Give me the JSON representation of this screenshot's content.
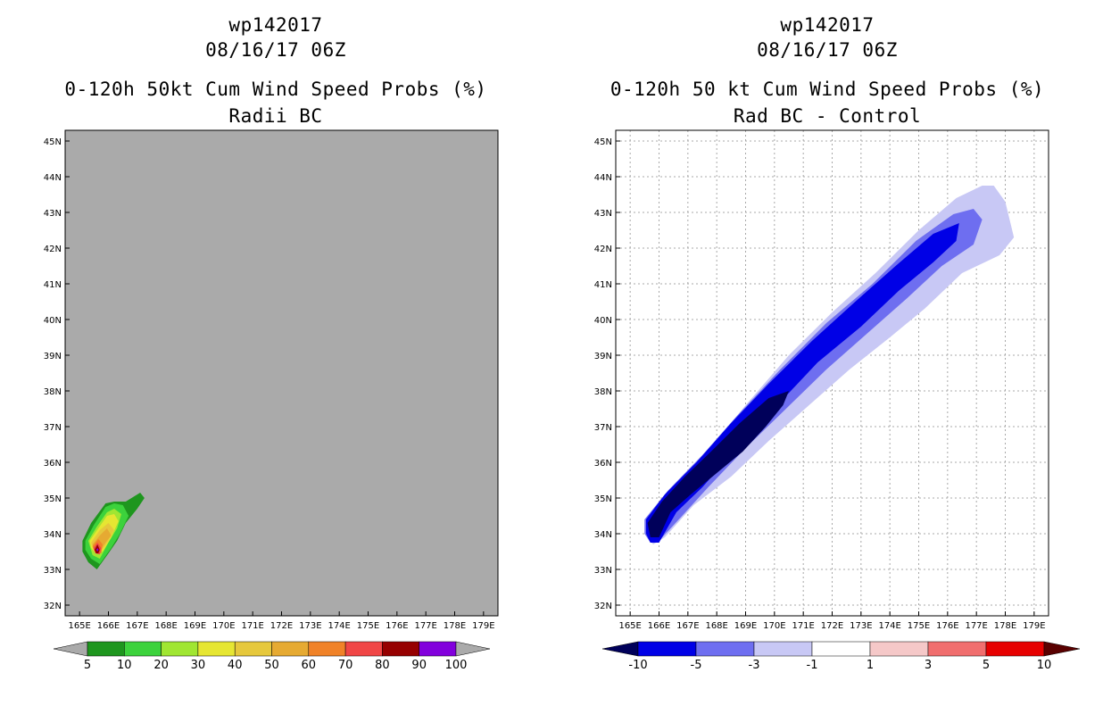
{
  "chart_data": [
    {
      "type": "heatmap",
      "title_lines": [
        "wp142017",
        "08/16/17 06Z",
        "0-120h 50kt Cum Wind Speed Probs (%)",
        "Radii BC"
      ],
      "xlabel": "",
      "ylabel": "",
      "x_ticks": [
        "165E",
        "166E",
        "167E",
        "168E",
        "169E",
        "170E",
        "171E",
        "172E",
        "173E",
        "174E",
        "175E",
        "176E",
        "177E",
        "178E",
        "179E"
      ],
      "y_ticks": [
        "32N",
        "33N",
        "34N",
        "35N",
        "36N",
        "37N",
        "38N",
        "39N",
        "40N",
        "41N",
        "42N",
        "43N",
        "44N",
        "45N"
      ],
      "xlim": [
        164.5,
        179.5
      ],
      "ylim": [
        31.7,
        45.3
      ],
      "grid": false,
      "background_color": "#aaaaaa",
      "colorbar": {
        "labels": [
          "5",
          "10",
          "20",
          "30",
          "40",
          "50",
          "60",
          "70",
          "80",
          "90",
          "100"
        ],
        "colors": [
          "#1e961e",
          "#3cd23c",
          "#a0e632",
          "#e6e632",
          "#e6c83c",
          "#e6aa32",
          "#f08228",
          "#f04646",
          "#960000",
          "#8200dc"
        ],
        "under_color": "#aaaaaa",
        "over_color": "#aaaaaa"
      },
      "contours": [
        {
          "level": 5,
          "color": "#1e961e",
          "points": [
            [
              165.1,
              33.8
            ],
            [
              165.4,
              34.3
            ],
            [
              165.9,
              34.85
            ],
            [
              166.2,
              34.9
            ],
            [
              166.6,
              34.9
            ],
            [
              167.1,
              35.15
            ],
            [
              167.25,
              35.0
            ],
            [
              167.0,
              34.7
            ],
            [
              166.6,
              34.3
            ],
            [
              166.3,
              33.8
            ],
            [
              166.0,
              33.45
            ],
            [
              165.6,
              33.0
            ],
            [
              165.3,
              33.2
            ],
            [
              165.1,
              33.5
            ]
          ]
        },
        {
          "level": 10,
          "color": "#3cd23c",
          "points": [
            [
              165.2,
              33.8
            ],
            [
              165.5,
              34.25
            ],
            [
              165.9,
              34.75
            ],
            [
              166.2,
              34.85
            ],
            [
              166.5,
              34.8
            ],
            [
              166.7,
              34.5
            ],
            [
              166.4,
              34.0
            ],
            [
              166.1,
              33.6
            ],
            [
              165.7,
              33.15
            ],
            [
              165.4,
              33.3
            ],
            [
              165.2,
              33.55
            ]
          ]
        },
        {
          "level": 20,
          "color": "#a0e632",
          "points": [
            [
              165.3,
              33.8
            ],
            [
              165.6,
              34.2
            ],
            [
              165.95,
              34.6
            ],
            [
              166.2,
              34.7
            ],
            [
              166.45,
              34.55
            ],
            [
              166.3,
              34.15
            ],
            [
              166.0,
              33.75
            ],
            [
              165.7,
              33.3
            ],
            [
              165.45,
              33.4
            ]
          ]
        },
        {
          "level": 30,
          "color": "#e6e632",
          "points": [
            [
              165.35,
              33.8
            ],
            [
              165.65,
              34.15
            ],
            [
              165.95,
              34.5
            ],
            [
              166.2,
              34.55
            ],
            [
              166.35,
              34.35
            ],
            [
              166.1,
              33.9
            ],
            [
              165.8,
              33.5
            ],
            [
              165.55,
              33.45
            ],
            [
              165.4,
              33.6
            ]
          ]
        },
        {
          "level": 40,
          "color": "#e6c83c",
          "points": [
            [
              165.4,
              33.75
            ],
            [
              165.7,
              34.1
            ],
            [
              166.0,
              34.3
            ],
            [
              166.2,
              34.1
            ],
            [
              166.0,
              33.8
            ],
            [
              165.75,
              33.5
            ],
            [
              165.5,
              33.5
            ]
          ]
        },
        {
          "level": 50,
          "color": "#e6aa32",
          "points": [
            [
              165.45,
              33.7
            ],
            [
              165.7,
              33.95
            ],
            [
              165.95,
              34.15
            ],
            [
              166.1,
              33.95
            ],
            [
              165.9,
              33.75
            ],
            [
              165.7,
              33.5
            ],
            [
              165.5,
              33.55
            ]
          ]
        },
        {
          "level": 60,
          "color": "#f08228",
          "points": [
            [
              165.45,
              33.65
            ],
            [
              165.65,
              33.85
            ],
            [
              165.8,
              33.7
            ],
            [
              165.75,
              33.45
            ],
            [
              165.55,
              33.45
            ]
          ]
        },
        {
          "level": 70,
          "color": "#f04646",
          "points": [
            [
              165.48,
              33.6
            ],
            [
              165.62,
              33.75
            ],
            [
              165.75,
              33.6
            ],
            [
              165.7,
              33.42
            ],
            [
              165.55,
              33.45
            ]
          ]
        },
        {
          "level": 80,
          "color": "#960000",
          "points": [
            [
              165.52,
              33.55
            ],
            [
              165.62,
              33.7
            ],
            [
              165.7,
              33.55
            ],
            [
              165.65,
              33.45
            ],
            [
              165.57,
              33.45
            ]
          ]
        },
        {
          "level": 90,
          "color": "#8200dc",
          "points": [
            [
              165.58,
              33.55
            ],
            [
              165.62,
              33.6
            ],
            [
              165.66,
              33.55
            ],
            [
              165.62,
              33.5
            ]
          ]
        }
      ]
    },
    {
      "type": "heatmap",
      "title_lines": [
        "wp142017",
        "08/16/17 06Z",
        "0-120h 50 kt Cum Wind Speed Probs (%)",
        "Rad BC - Control"
      ],
      "xlabel": "",
      "ylabel": "",
      "x_ticks": [
        "165E",
        "166E",
        "167E",
        "168E",
        "169E",
        "170E",
        "171E",
        "172E",
        "173E",
        "174E",
        "175E",
        "176E",
        "177E",
        "178E",
        "179E"
      ],
      "y_ticks": [
        "32N",
        "33N",
        "34N",
        "35N",
        "36N",
        "37N",
        "38N",
        "39N",
        "40N",
        "41N",
        "42N",
        "43N",
        "44N",
        "45N"
      ],
      "xlim": [
        164.5,
        179.5
      ],
      "ylim": [
        31.7,
        45.3
      ],
      "grid": true,
      "background_color": "#ffffff",
      "colorbar": {
        "labels": [
          "-10",
          "-5",
          "-3",
          "-1",
          "1",
          "3",
          "5",
          "10"
        ],
        "colors": [
          "#0000e6",
          "#6e6ef0",
          "#c8c8f5",
          "#ffffff",
          "#f5c8c8",
          "#f06e6e",
          "#e60000"
        ],
        "under_color": "#00005a",
        "over_color": "#5a0000"
      },
      "contours": [
        {
          "level": -1,
          "color": "#c8c8f5",
          "points": [
            [
              165.5,
              34.4
            ],
            [
              166.5,
              35.3
            ],
            [
              167.8,
              36.4
            ],
            [
              169.0,
              37.6
            ],
            [
              170.5,
              39.0
            ],
            [
              172.0,
              40.2
            ],
            [
              173.5,
              41.3
            ],
            [
              175.0,
              42.5
            ],
            [
              176.3,
              43.4
            ],
            [
              177.2,
              43.75
            ],
            [
              177.6,
              43.75
            ],
            [
              178.0,
              43.3
            ],
            [
              178.3,
              42.3
            ],
            [
              177.8,
              41.8
            ],
            [
              176.5,
              41.3
            ],
            [
              175.2,
              40.3
            ],
            [
              174.0,
              39.5
            ],
            [
              172.6,
              38.6
            ],
            [
              171.2,
              37.6
            ],
            [
              169.8,
              36.6
            ],
            [
              168.5,
              35.6
            ],
            [
              167.2,
              34.8
            ],
            [
              166.2,
              33.9
            ],
            [
              165.8,
              33.7
            ],
            [
              165.5,
              34.0
            ]
          ]
        },
        {
          "level": -3,
          "color": "#6e6ef0",
          "points": [
            [
              165.5,
              34.4
            ],
            [
              166.3,
              35.2
            ],
            [
              167.5,
              36.2
            ],
            [
              168.7,
              37.3
            ],
            [
              170.2,
              38.6
            ],
            [
              171.8,
              39.9
            ],
            [
              173.4,
              41.0
            ],
            [
              174.9,
              42.2
            ],
            [
              176.2,
              42.95
            ],
            [
              176.9,
              43.1
            ],
            [
              177.2,
              42.8
            ],
            [
              176.9,
              42.1
            ],
            [
              175.8,
              41.5
            ],
            [
              174.6,
              40.6
            ],
            [
              173.2,
              39.6
            ],
            [
              171.8,
              38.6
            ],
            [
              170.4,
              37.5
            ],
            [
              169.0,
              36.4
            ],
            [
              167.7,
              35.3
            ],
            [
              166.8,
              34.5
            ],
            [
              166.0,
              33.8
            ],
            [
              165.7,
              33.75
            ],
            [
              165.5,
              34.0
            ]
          ]
        },
        {
          "level": -5,
          "color": "#0000e6",
          "points": [
            [
              165.55,
              34.4
            ],
            [
              166.2,
              35.1
            ],
            [
              167.3,
              36.0
            ],
            [
              168.5,
              37.1
            ],
            [
              169.8,
              38.2
            ],
            [
              171.3,
              39.4
            ],
            [
              172.8,
              40.5
            ],
            [
              174.2,
              41.5
            ],
            [
              175.5,
              42.4
            ],
            [
              176.4,
              42.7
            ],
            [
              176.3,
              42.2
            ],
            [
              175.5,
              41.6
            ],
            [
              174.3,
              40.8
            ],
            [
              173.0,
              39.8
            ],
            [
              171.5,
              38.8
            ],
            [
              170.1,
              37.6
            ],
            [
              168.7,
              36.4
            ],
            [
              167.5,
              35.3
            ],
            [
              166.6,
              34.6
            ],
            [
              166.0,
              33.75
            ],
            [
              165.7,
              33.75
            ],
            [
              165.55,
              34.0
            ]
          ]
        },
        {
          "level": -10,
          "color": "#00005a",
          "points": [
            [
              165.6,
              34.3
            ],
            [
              166.1,
              34.9
            ],
            [
              166.9,
              35.6
            ],
            [
              167.8,
              36.3
            ],
            [
              168.8,
              37.1
            ],
            [
              169.8,
              37.8
            ],
            [
              170.5,
              38.0
            ],
            [
              170.3,
              37.6
            ],
            [
              169.7,
              37.0
            ],
            [
              168.9,
              36.3
            ],
            [
              168.0,
              35.7
            ],
            [
              167.1,
              35.1
            ],
            [
              166.4,
              34.6
            ],
            [
              166.0,
              33.9
            ],
            [
              165.7,
              33.9
            ]
          ]
        }
      ]
    }
  ]
}
